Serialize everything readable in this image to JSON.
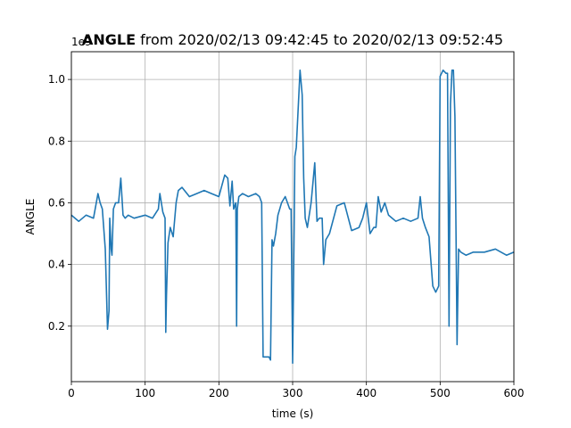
{
  "chart_data": {
    "type": "line",
    "title_bold": "ANGLE",
    "title_rest": " from 2020/02/13 09:42:45 to 2020/02/13 09:52:45",
    "xlabel": "time (s)",
    "ylabel": "ANGLE",
    "offset_text": "1e9",
    "xlim": [
      0,
      600
    ],
    "ylim": [
      0.02,
      1.09
    ],
    "xticks": [
      0,
      100,
      200,
      300,
      400,
      500,
      600
    ],
    "yticks": [
      0.2,
      0.4,
      0.6,
      0.8,
      1.0
    ],
    "xtick_labels": [
      "0",
      "100",
      "200",
      "300",
      "400",
      "500",
      "600"
    ],
    "ytick_labels": [
      "0.2",
      "0.4",
      "0.6",
      "0.8",
      "1.0"
    ],
    "grid": true,
    "line_color": "#1f77b4",
    "series": [
      {
        "x": [
          0,
          5,
          10,
          20,
          30,
          36,
          39,
          42,
          46,
          49,
          51,
          52,
          54,
          55,
          57,
          60,
          64,
          67,
          70,
          73,
          77,
          85,
          100,
          110,
          118,
          120,
          124,
          127,
          128,
          129,
          131,
          134,
          138,
          142,
          145,
          150,
          160,
          170,
          180,
          190,
          200,
          208,
          212,
          215,
          218,
          220,
          223,
          224,
          225,
          227,
          232,
          240,
          250,
          255,
          258,
          260,
          263,
          268,
          270,
          272,
          274,
          277,
          280,
          285,
          290,
          293,
          296,
          298,
          300,
          302,
          303,
          305,
          310,
          313,
          315,
          317,
          320,
          325,
          330,
          333,
          336,
          340,
          342,
          345,
          350,
          360,
          370,
          380,
          390,
          395,
          400,
          405,
          410,
          413,
          416,
          420,
          425,
          430,
          435,
          440,
          450,
          460,
          470,
          473,
          476,
          480,
          485,
          490,
          494,
          498,
          500,
          504,
          508,
          510,
          512,
          514,
          516,
          518,
          520,
          523,
          525,
          528,
          535,
          545,
          560,
          575,
          590,
          600
        ],
        "y": [
          0.56,
          0.55,
          0.54,
          0.56,
          0.55,
          0.63,
          0.6,
          0.58,
          0.45,
          0.19,
          0.25,
          0.55,
          0.45,
          0.43,
          0.58,
          0.6,
          0.6,
          0.68,
          0.56,
          0.55,
          0.56,
          0.55,
          0.56,
          0.55,
          0.58,
          0.63,
          0.57,
          0.55,
          0.18,
          0.3,
          0.47,
          0.52,
          0.49,
          0.6,
          0.64,
          0.65,
          0.62,
          0.63,
          0.64,
          0.63,
          0.62,
          0.69,
          0.68,
          0.59,
          0.67,
          0.58,
          0.6,
          0.2,
          0.58,
          0.62,
          0.63,
          0.62,
          0.63,
          0.62,
          0.6,
          0.1,
          0.1,
          0.1,
          0.09,
          0.48,
          0.46,
          0.5,
          0.56,
          0.6,
          0.62,
          0.6,
          0.58,
          0.58,
          0.08,
          0.52,
          0.75,
          0.78,
          1.03,
          0.95,
          0.68,
          0.55,
          0.52,
          0.6,
          0.73,
          0.54,
          0.55,
          0.55,
          0.4,
          0.48,
          0.5,
          0.59,
          0.6,
          0.51,
          0.52,
          0.55,
          0.6,
          0.5,
          0.52,
          0.52,
          0.62,
          0.57,
          0.6,
          0.56,
          0.55,
          0.54,
          0.55,
          0.54,
          0.55,
          0.62,
          0.55,
          0.52,
          0.49,
          0.33,
          0.31,
          0.33,
          1.01,
          1.03,
          1.02,
          1.02,
          0.2,
          0.92,
          1.03,
          1.03,
          0.88,
          0.14,
          0.45,
          0.44,
          0.43,
          0.44,
          0.44,
          0.45,
          0.43,
          0.44
        ]
      }
    ]
  }
}
